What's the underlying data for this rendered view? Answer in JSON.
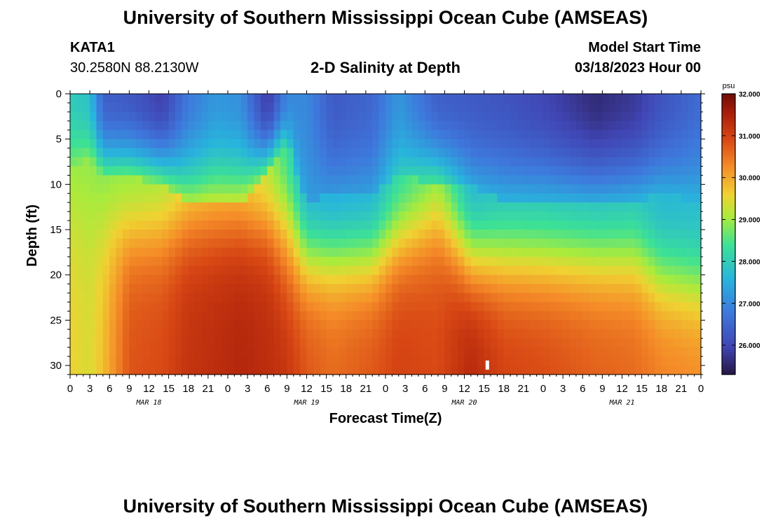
{
  "header": {
    "title": "University of Southern Mississippi Ocean Cube (AMSEAS)",
    "station_id": "KATA1",
    "coordinates": "30.2580N  88.2130W",
    "subtitle": "2-D Salinity at Depth",
    "model_start_label": "Model Start Time",
    "model_start_value": "03/18/2023 Hour 00"
  },
  "footer": {
    "title": "University of Southern Mississippi Ocean Cube (AMSEAS)"
  },
  "chart_data": {
    "type": "heatmap",
    "title": "2-D Salinity at Depth",
    "xlabel": "Forecast Time(Z)",
    "ylabel": "Depth (ft)",
    "x_hours_range": [
      0,
      96
    ],
    "x_tick_labels": [
      "0",
      "3",
      "6",
      "9",
      "12",
      "15",
      "18",
      "21",
      "0",
      "3",
      "6",
      "9",
      "12",
      "15",
      "18",
      "21",
      "0",
      "3",
      "6",
      "9",
      "12",
      "15",
      "18",
      "21",
      "0",
      "3",
      "6",
      "9",
      "12",
      "15",
      "18",
      "21",
      "0"
    ],
    "day_labels": [
      {
        "label": "MAR 18",
        "hour": 12
      },
      {
        "label": "MAR 19",
        "hour": 36
      },
      {
        "label": "MAR 20",
        "hour": 60
      },
      {
        "label": "MAR 21",
        "hour": 84
      }
    ],
    "y_ticks": [
      0,
      5,
      10,
      15,
      20,
      25,
      30
    ],
    "ylim": [
      0,
      31
    ],
    "y_inverted": true,
    "colorbar": {
      "unit": "psu",
      "range": [
        25.3,
        32.0
      ],
      "ticks": [
        "32.000",
        "31.000",
        "30.000",
        "29.000",
        "28.000",
        "27.000",
        "26.000"
      ],
      "tick_values": [
        32,
        31,
        30,
        29,
        28,
        27,
        26
      ]
    },
    "marker": {
      "hour": 63.5,
      "depth": 30
    },
    "series": [
      {
        "hour": 0,
        "surface": 28.0,
        "mid": 28.8,
        "bottom": 29.6,
        "d_half": 8,
        "mid_depth": 13,
        "width": 4
      },
      {
        "hour": 3,
        "surface": 27.8,
        "mid": 28.8,
        "bottom": 29.4,
        "d_half": 7,
        "mid_depth": 13,
        "width": 4
      },
      {
        "hour": 5,
        "surface": 26.4,
        "mid": 28.6,
        "bottom": 29.8,
        "d_half": 9,
        "mid_depth": 14,
        "width": 4
      },
      {
        "hour": 9,
        "surface": 26.3,
        "mid": 28.7,
        "bottom": 30.8,
        "d_half": 9,
        "mid_depth": 15,
        "width": 3
      },
      {
        "hour": 14,
        "surface": 25.9,
        "mid": 28.8,
        "bottom": 30.9,
        "d_half": 10,
        "mid_depth": 15,
        "width": 3
      },
      {
        "hour": 18,
        "surface": 26.8,
        "mid": 29.1,
        "bottom": 31.2,
        "d_half": 12,
        "mid_depth": 14,
        "width": 3
      },
      {
        "hour": 22,
        "surface": 27.2,
        "mid": 29.3,
        "bottom": 31.3,
        "d_half": 12,
        "mid_depth": 14,
        "width": 3
      },
      {
        "hour": 26,
        "surface": 27.1,
        "mid": 29.3,
        "bottom": 31.4,
        "d_half": 12,
        "mid_depth": 14,
        "width": 3
      },
      {
        "hour": 30,
        "surface": 25.8,
        "mid": 28.9,
        "bottom": 31.3,
        "d_half": 9,
        "mid_depth": 14,
        "width": 3
      },
      {
        "hour": 33,
        "surface": 27.0,
        "mid": 28.0,
        "bottom": 31.2,
        "d_half": 5,
        "mid_depth": 15,
        "width": 4
      },
      {
        "hour": 36,
        "surface": 27.0,
        "mid": 27.3,
        "bottom": 30.8,
        "d_half": 12,
        "mid_depth": 18,
        "width": 3
      },
      {
        "hour": 40,
        "surface": 26.3,
        "mid": 27.2,
        "bottom": 30.6,
        "d_half": 11,
        "mid_depth": 18,
        "width": 3
      },
      {
        "hour": 46,
        "surface": 26.5,
        "mid": 27.3,
        "bottom": 30.8,
        "d_half": 11,
        "mid_depth": 18,
        "width": 3
      },
      {
        "hour": 50,
        "surface": 27.2,
        "mid": 28.0,
        "bottom": 31.0,
        "d_half": 9,
        "mid_depth": 16,
        "width": 3
      },
      {
        "hour": 56,
        "surface": 26.4,
        "mid": 28.5,
        "bottom": 30.9,
        "d_half": 10,
        "mid_depth": 14,
        "width": 3
      },
      {
        "hour": 61,
        "surface": 26.3,
        "mid": 27.4,
        "bottom": 31.4,
        "d_half": 10,
        "mid_depth": 18,
        "width": 3
      },
      {
        "hour": 66,
        "surface": 26.2,
        "mid": 27.6,
        "bottom": 31.0,
        "d_half": 12,
        "mid_depth": 18,
        "width": 3
      },
      {
        "hour": 72,
        "surface": 26.0,
        "mid": 27.6,
        "bottom": 30.9,
        "d_half": 12,
        "mid_depth": 18,
        "width": 3
      },
      {
        "hour": 80,
        "surface": 25.6,
        "mid": 27.5,
        "bottom": 30.7,
        "d_half": 12,
        "mid_depth": 18,
        "width": 3
      },
      {
        "hour": 86,
        "surface": 25.8,
        "mid": 27.6,
        "bottom": 30.6,
        "d_half": 12,
        "mid_depth": 18,
        "width": 3
      },
      {
        "hour": 90,
        "surface": 26.2,
        "mid": 27.5,
        "bottom": 30.4,
        "d_half": 11,
        "mid_depth": 20,
        "width": 3
      },
      {
        "hour": 96,
        "surface": 26.6,
        "mid": 27.6,
        "bottom": 30.3,
        "d_half": 12,
        "mid_depth": 21,
        "width": 3
      }
    ]
  }
}
